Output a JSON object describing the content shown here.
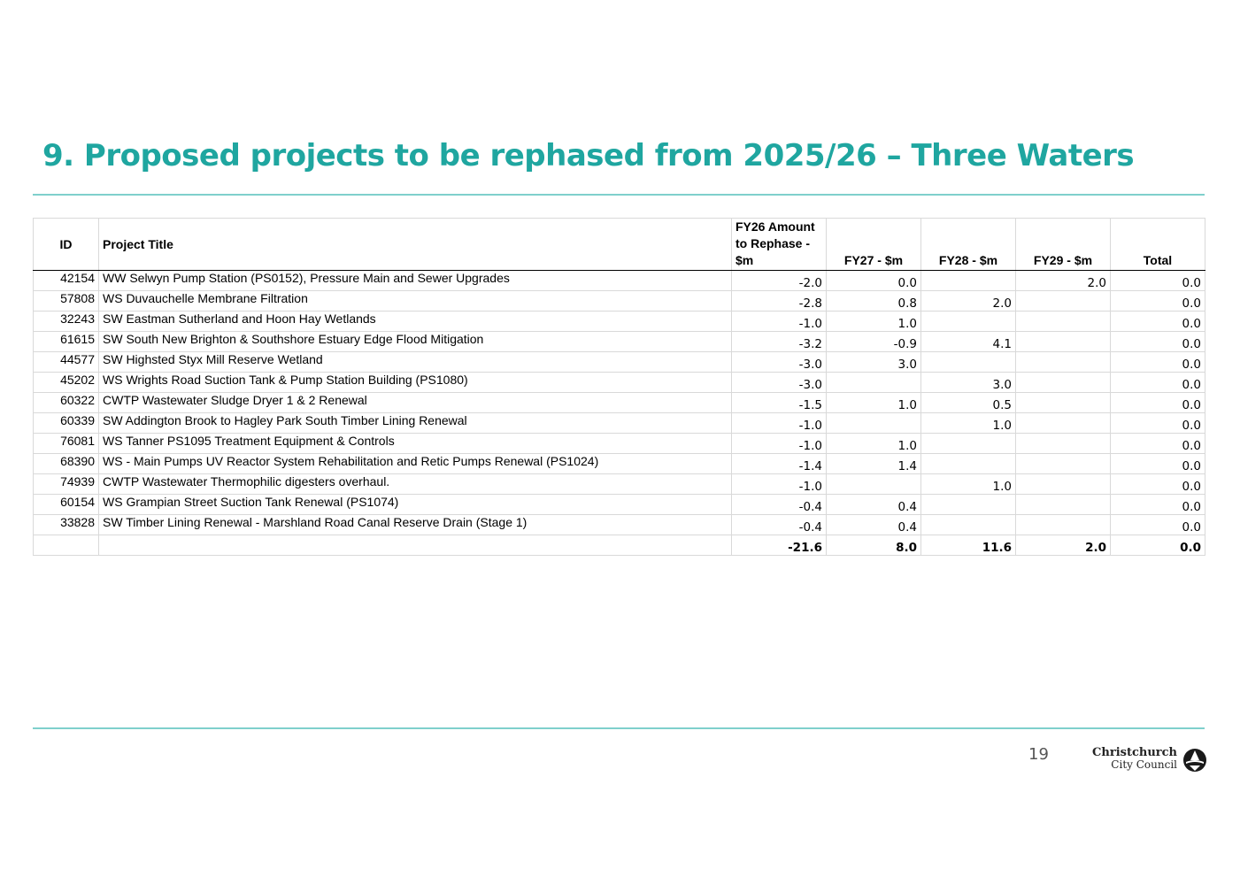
{
  "page": {
    "title": "9. Proposed projects to be rephased from 2025/26 – Three Waters",
    "page_number": "19"
  },
  "logo": {
    "line1": "Christchurch",
    "line2": "City Council"
  },
  "table": {
    "headers": {
      "id": "ID",
      "title": "Project Title",
      "fy26": [
        "FY26 Amount",
        "to Rephase -",
        "$m"
      ],
      "fy27": "FY27 - $m",
      "fy28": "FY28 - $m",
      "fy29": "FY29 - $m",
      "total": "Total"
    },
    "rows": [
      {
        "id": "42154",
        "title": "WW Selwyn Pump Station (PS0152), Pressure Main and Sewer Upgrades",
        "fy26": "-2.0",
        "fy27": "0.0",
        "fy28": "",
        "fy29": "2.0",
        "total": "0.0"
      },
      {
        "id": "57808",
        "title": "WS Duvauchelle Membrane Filtration",
        "fy26": "-2.8",
        "fy27": "0.8",
        "fy28": "2.0",
        "fy29": "",
        "total": "0.0"
      },
      {
        "id": "32243",
        "title": "SW Eastman Sutherland and Hoon Hay Wetlands",
        "fy26": "-1.0",
        "fy27": "1.0",
        "fy28": "",
        "fy29": "",
        "total": "0.0"
      },
      {
        "id": "61615",
        "title": "SW South New Brighton & Southshore Estuary Edge Flood Mitigation",
        "fy26": "-3.2",
        "fy27": "-0.9",
        "fy28": "4.1",
        "fy29": "",
        "total": "0.0"
      },
      {
        "id": "44577",
        "title": "SW Highsted Styx Mill Reserve Wetland",
        "fy26": "-3.0",
        "fy27": "3.0",
        "fy28": "",
        "fy29": "",
        "total": "0.0"
      },
      {
        "id": "45202",
        "title": "WS Wrights Road Suction Tank & Pump Station Building (PS1080)",
        "fy26": "-3.0",
        "fy27": "",
        "fy28": "3.0",
        "fy29": "",
        "total": "0.0"
      },
      {
        "id": "60322",
        "title": "CWTP Wastewater Sludge Dryer 1 & 2 Renewal",
        "fy26": "-1.5",
        "fy27": "1.0",
        "fy28": "0.5",
        "fy29": "",
        "total": "0.0"
      },
      {
        "id": "60339",
        "title": "SW Addington Brook to Hagley Park South Timber Lining Renewal",
        "fy26": "-1.0",
        "fy27": "",
        "fy28": "1.0",
        "fy29": "",
        "total": "0.0"
      },
      {
        "id": "76081",
        "title": "WS Tanner PS1095 Treatment Equipment & Controls",
        "fy26": "-1.0",
        "fy27": "1.0",
        "fy28": "",
        "fy29": "",
        "total": "0.0"
      },
      {
        "id": "68390",
        "title": "WS - Main Pumps UV Reactor System Rehabilitation and Retic Pumps Renewal (PS1024)",
        "fy26": "-1.4",
        "fy27": "1.4",
        "fy28": "",
        "fy29": "",
        "total": "0.0"
      },
      {
        "id": "74939",
        "title": "CWTP Wastewater Thermophilic digesters overhaul.",
        "fy26": "-1.0",
        "fy27": "",
        "fy28": "1.0",
        "fy29": "",
        "total": "0.0"
      },
      {
        "id": "60154",
        "title": "WS Grampian Street Suction Tank Renewal (PS1074)",
        "fy26": "-0.4",
        "fy27": "0.4",
        "fy28": "",
        "fy29": "",
        "total": "0.0"
      },
      {
        "id": "33828",
        "title": "SW Timber Lining Renewal - Marshland Road Canal Reserve Drain (Stage 1)",
        "fy26": "-0.4",
        "fy27": "0.4",
        "fy28": "",
        "fy29": "",
        "total": "0.0"
      }
    ],
    "totals": {
      "fy26": "-21.6",
      "fy27": "8.0",
      "fy28": "11.6",
      "fy29": "2.0",
      "total": "0.0"
    }
  }
}
